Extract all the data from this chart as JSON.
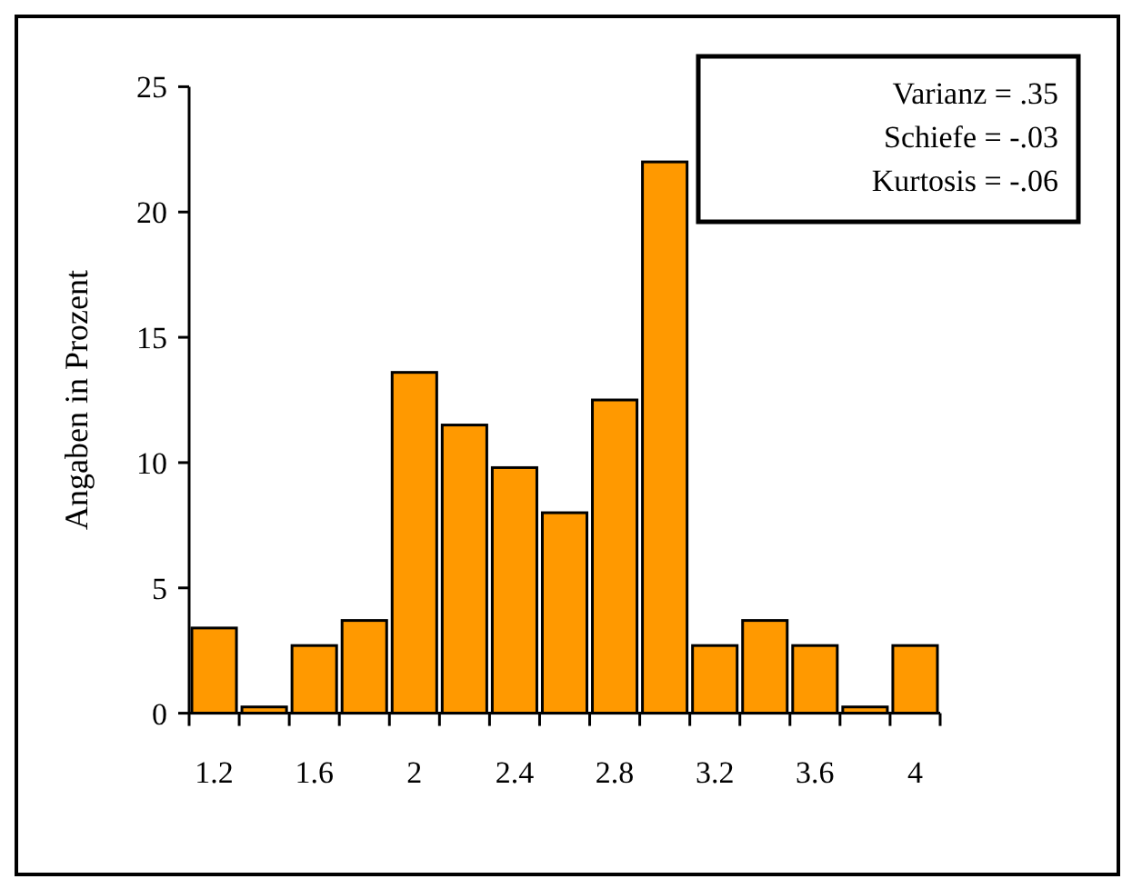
{
  "chart_data": {
    "type": "histogram",
    "ylabel": "Angaben in Prozent",
    "bins": [
      1.1,
      1.3,
      1.5,
      1.7,
      1.9,
      2.1,
      2.3,
      2.5,
      2.7,
      2.9,
      3.1,
      3.3,
      3.5,
      3.7,
      3.9,
      4.1
    ],
    "values": [
      3.4,
      0.25,
      2.7,
      3.7,
      13.6,
      11.5,
      9.8,
      8.0,
      12.5,
      22.0,
      2.7,
      3.7,
      2.7,
      0.25,
      2.7
    ],
    "color": "#ff9900",
    "xlim": [
      1.1,
      4.1
    ],
    "xticks": [
      {
        "value": 1.1,
        "label": null
      },
      1.2,
      {
        "value": 1.3,
        "label": null
      },
      {
        "value": 1.5,
        "label": null
      },
      1.6,
      {
        "value": 1.7,
        "label": null
      },
      {
        "value": 1.9,
        "label": null
      },
      2,
      {
        "value": 2.1,
        "label": null
      },
      {
        "value": 2.3,
        "label": null
      },
      2.4,
      {
        "value": 2.5,
        "label": null
      },
      {
        "value": 2.7,
        "label": null
      },
      2.8,
      {
        "value": 2.9,
        "label": null
      },
      {
        "value": 3.1,
        "label": null
      },
      3.2,
      {
        "value": 3.3,
        "label": null
      },
      {
        "value": 3.5,
        "label": null
      },
      3.6,
      {
        "value": 3.7,
        "label": null
      },
      {
        "value": 3.9,
        "label": null
      },
      4,
      {
        "value": 4.1,
        "label": null
      }
    ],
    "ylim": [
      0,
      25
    ],
    "yticks": [
      0,
      5,
      10,
      15,
      20,
      25
    ],
    "annotations": [
      "Varianz = .35",
      "Schiefe = -.03",
      "Kurtosis = -.06"
    ]
  }
}
